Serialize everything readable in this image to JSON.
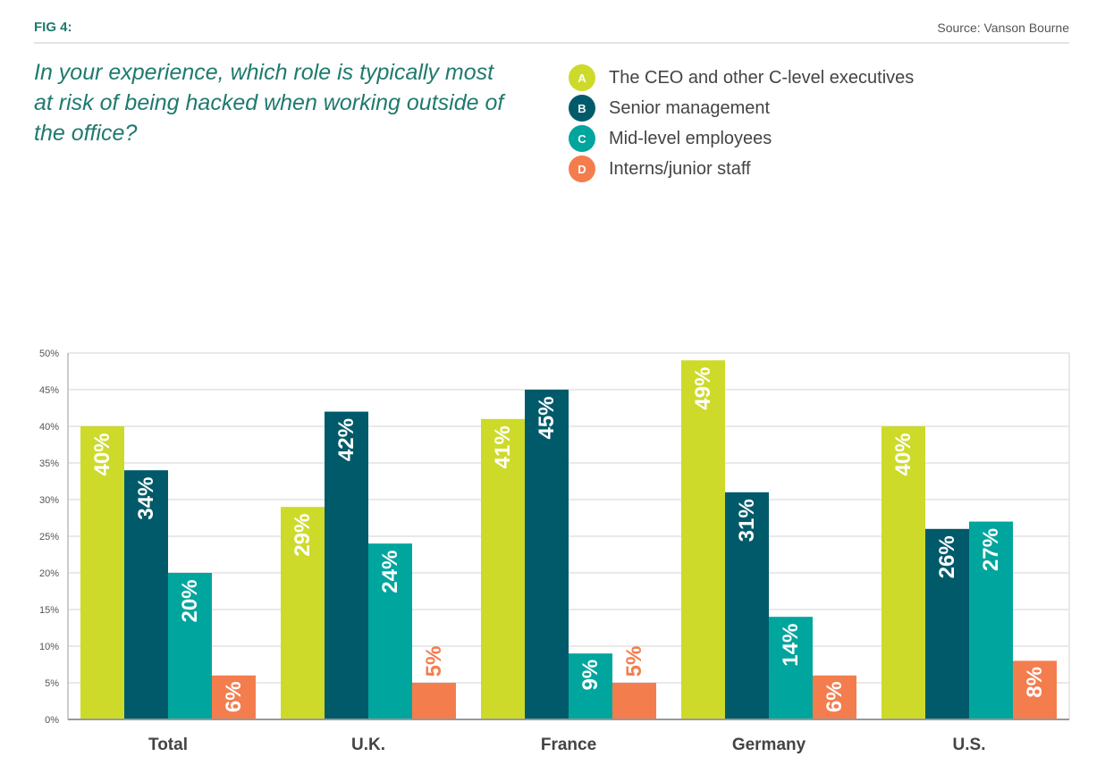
{
  "header": {
    "fig_label": "FIG 4:",
    "source": "Source: Vanson Bourne"
  },
  "question": "In your experience, which role is typically most at risk of being hacked when working outside of the office?",
  "legend": [
    {
      "marker": "A",
      "label": "The CEO and other C-level executives",
      "color": "#cdda2a"
    },
    {
      "marker": "B",
      "label": "Senior management",
      "color": "#005a6a"
    },
    {
      "marker": "C",
      "label": "Mid-level employees",
      "color": "#00a59e"
    },
    {
      "marker": "D",
      "label": "Interns/junior staff",
      "color": "#f47d4e"
    }
  ],
  "chart_data": {
    "type": "bar",
    "categories": [
      "Total",
      "U.K.",
      "France",
      "Germany",
      "U.S."
    ],
    "series": [
      {
        "name": "The CEO and other C-level executives",
        "values": [
          40,
          29,
          41,
          49,
          40
        ],
        "color": "#cdda2a"
      },
      {
        "name": "Senior management",
        "values": [
          34,
          42,
          45,
          31,
          26
        ],
        "color": "#005a6a"
      },
      {
        "name": "Mid-level employees",
        "values": [
          20,
          24,
          9,
          14,
          27
        ],
        "color": "#00a59e"
      },
      {
        "name": "Interns/junior staff",
        "values": [
          6,
          5,
          5,
          6,
          8
        ],
        "color": "#f47d4e"
      }
    ],
    "data_labels": [
      [
        "40%",
        "29%",
        "41%",
        "49%",
        "40%"
      ],
      [
        "34%",
        "42%",
        "45%",
        "31%",
        "26%"
      ],
      [
        "20%",
        "24%",
        "9%",
        "14%",
        "27%"
      ],
      [
        "6%",
        "5%",
        "5%",
        "6%",
        "8%"
      ]
    ],
    "yticks": [
      "0%",
      "5%",
      "10%",
      "15%",
      "20%",
      "25%",
      "30%",
      "35%",
      "40%",
      "45%",
      "50%"
    ],
    "ylim": [
      0,
      50
    ],
    "grid": true,
    "legend_position": "top-right",
    "title": "",
    "xlabel": "",
    "ylabel": ""
  }
}
